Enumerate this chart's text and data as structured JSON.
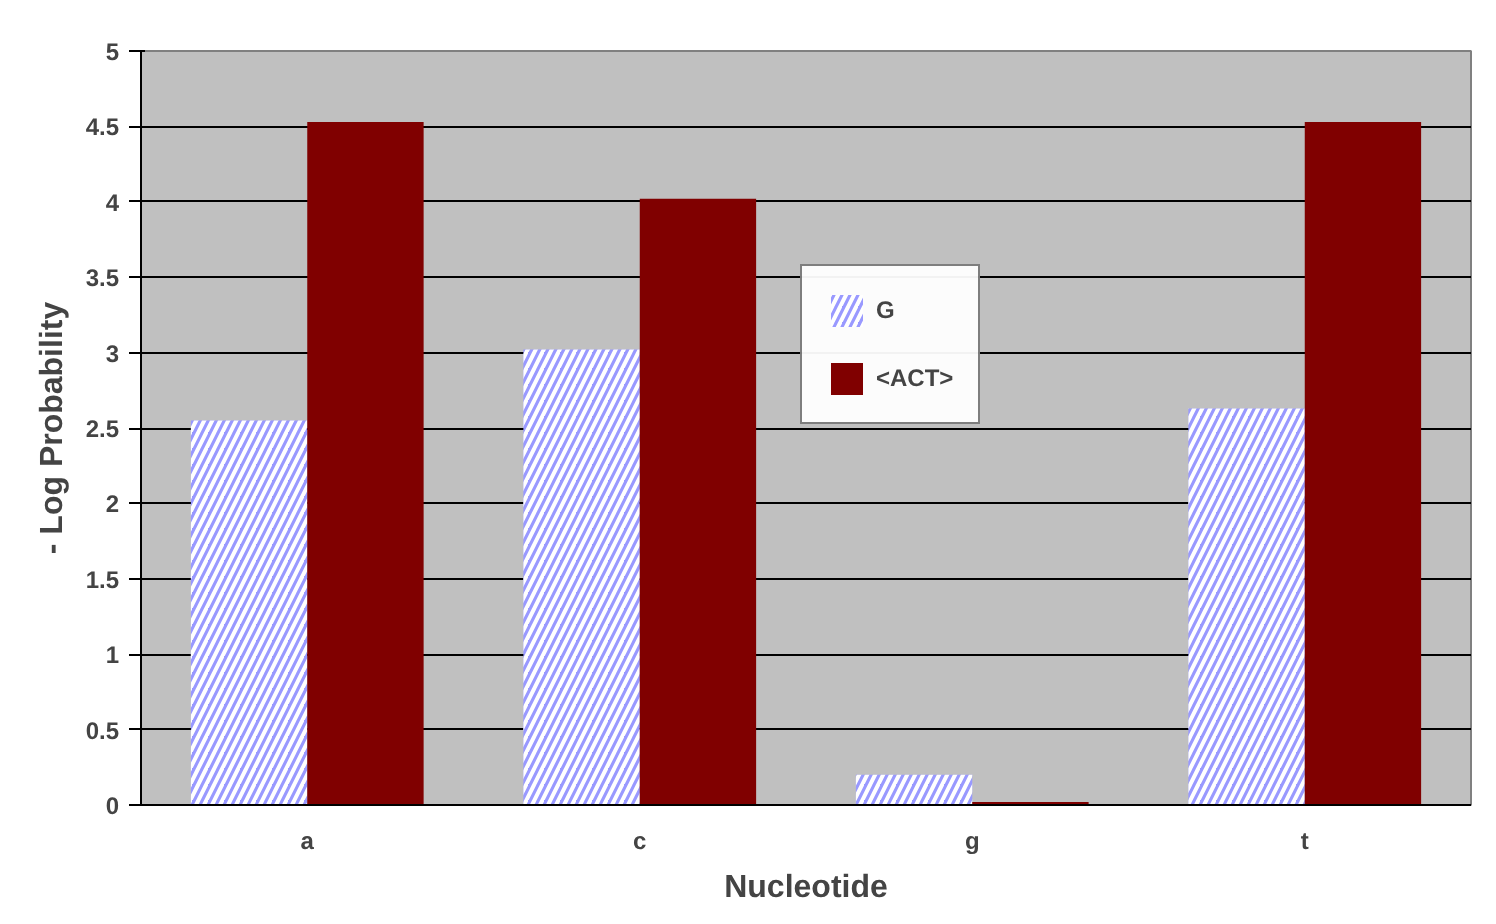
{
  "chart_data": {
    "type": "bar",
    "xlabel": "Nucleotide",
    "ylabel": "- Log Probability",
    "categories": [
      "a",
      "c",
      "g",
      "t"
    ],
    "series": [
      {
        "name": "G",
        "color": "#9999ff",
        "values": [
          2.55,
          3.02,
          0.2,
          2.63
        ]
      },
      {
        "name": "<ACT>",
        "color": "#800000",
        "values": [
          4.53,
          4.02,
          0.02,
          4.53
        ]
      }
    ],
    "ylim": [
      0,
      5
    ],
    "yticks": [
      0,
      0.5,
      1,
      1.5,
      2,
      2.5,
      3,
      3.5,
      4,
      4.5,
      5
    ],
    "grid": "y",
    "legend": "center"
  }
}
